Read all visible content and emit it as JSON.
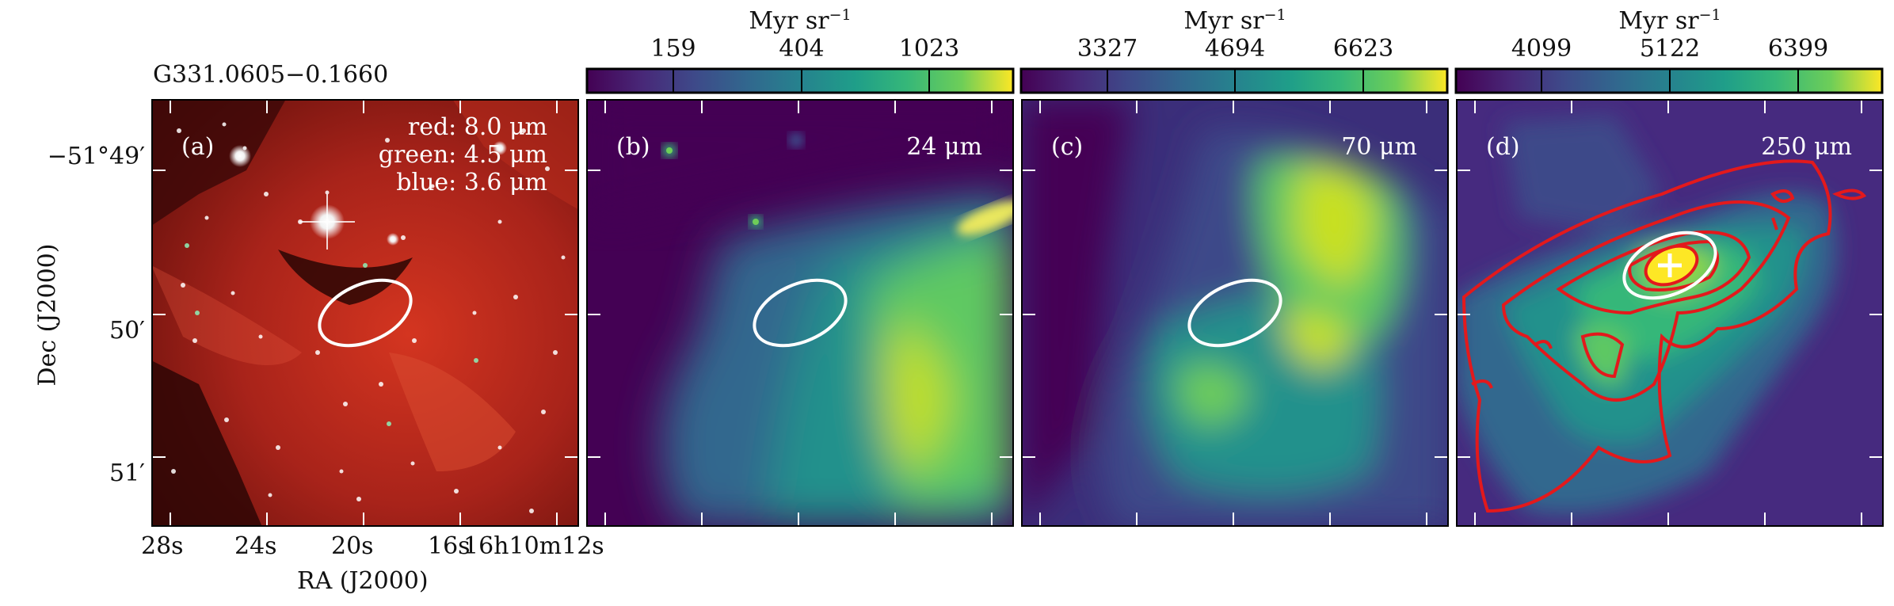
{
  "figure": {
    "source_name": "G331.0605−0.1660",
    "panels": [
      {
        "id": "a",
        "label": "(a)",
        "annotation_lines": [
          "red: 8.0 μm",
          "green: 4.5 μm",
          "blue: 3.6 μm"
        ]
      },
      {
        "id": "b",
        "label": "(b)",
        "band": "24 μm"
      },
      {
        "id": "c",
        "label": "(c)",
        "band": "70 μm"
      },
      {
        "id": "d",
        "label": "(d)",
        "band": "250 μm"
      }
    ],
    "colorbars": [
      {
        "panel": "b",
        "unit": "Myr sr",
        "unit_exp": "−1",
        "ticks": [
          "159",
          "404",
          "1023"
        ]
      },
      {
        "panel": "c",
        "unit": "Myr sr",
        "unit_exp": "−1",
        "ticks": [
          "3327",
          "4694",
          "6623"
        ]
      },
      {
        "panel": "d",
        "unit": "Myr sr",
        "unit_exp": "−1",
        "ticks": [
          "4099",
          "5122",
          "6399"
        ]
      }
    ],
    "axes": {
      "xlabel": "RA (J2000)",
      "ylabel": "Dec (J2000)",
      "ra_ticks": [
        "28s",
        "24s",
        "20s",
        "16s",
        "16h10m12s"
      ],
      "dec_ticks": [
        "−51°49′",
        "50′",
        "51′"
      ]
    },
    "colors": {
      "viridis_dark": "#440154",
      "viridis_mid": "#21918c",
      "viridis_light": "#fde725",
      "contour": "#e3191c",
      "ellipse": "#ffffff",
      "rgb_bg": "#8a1a10"
    }
  }
}
